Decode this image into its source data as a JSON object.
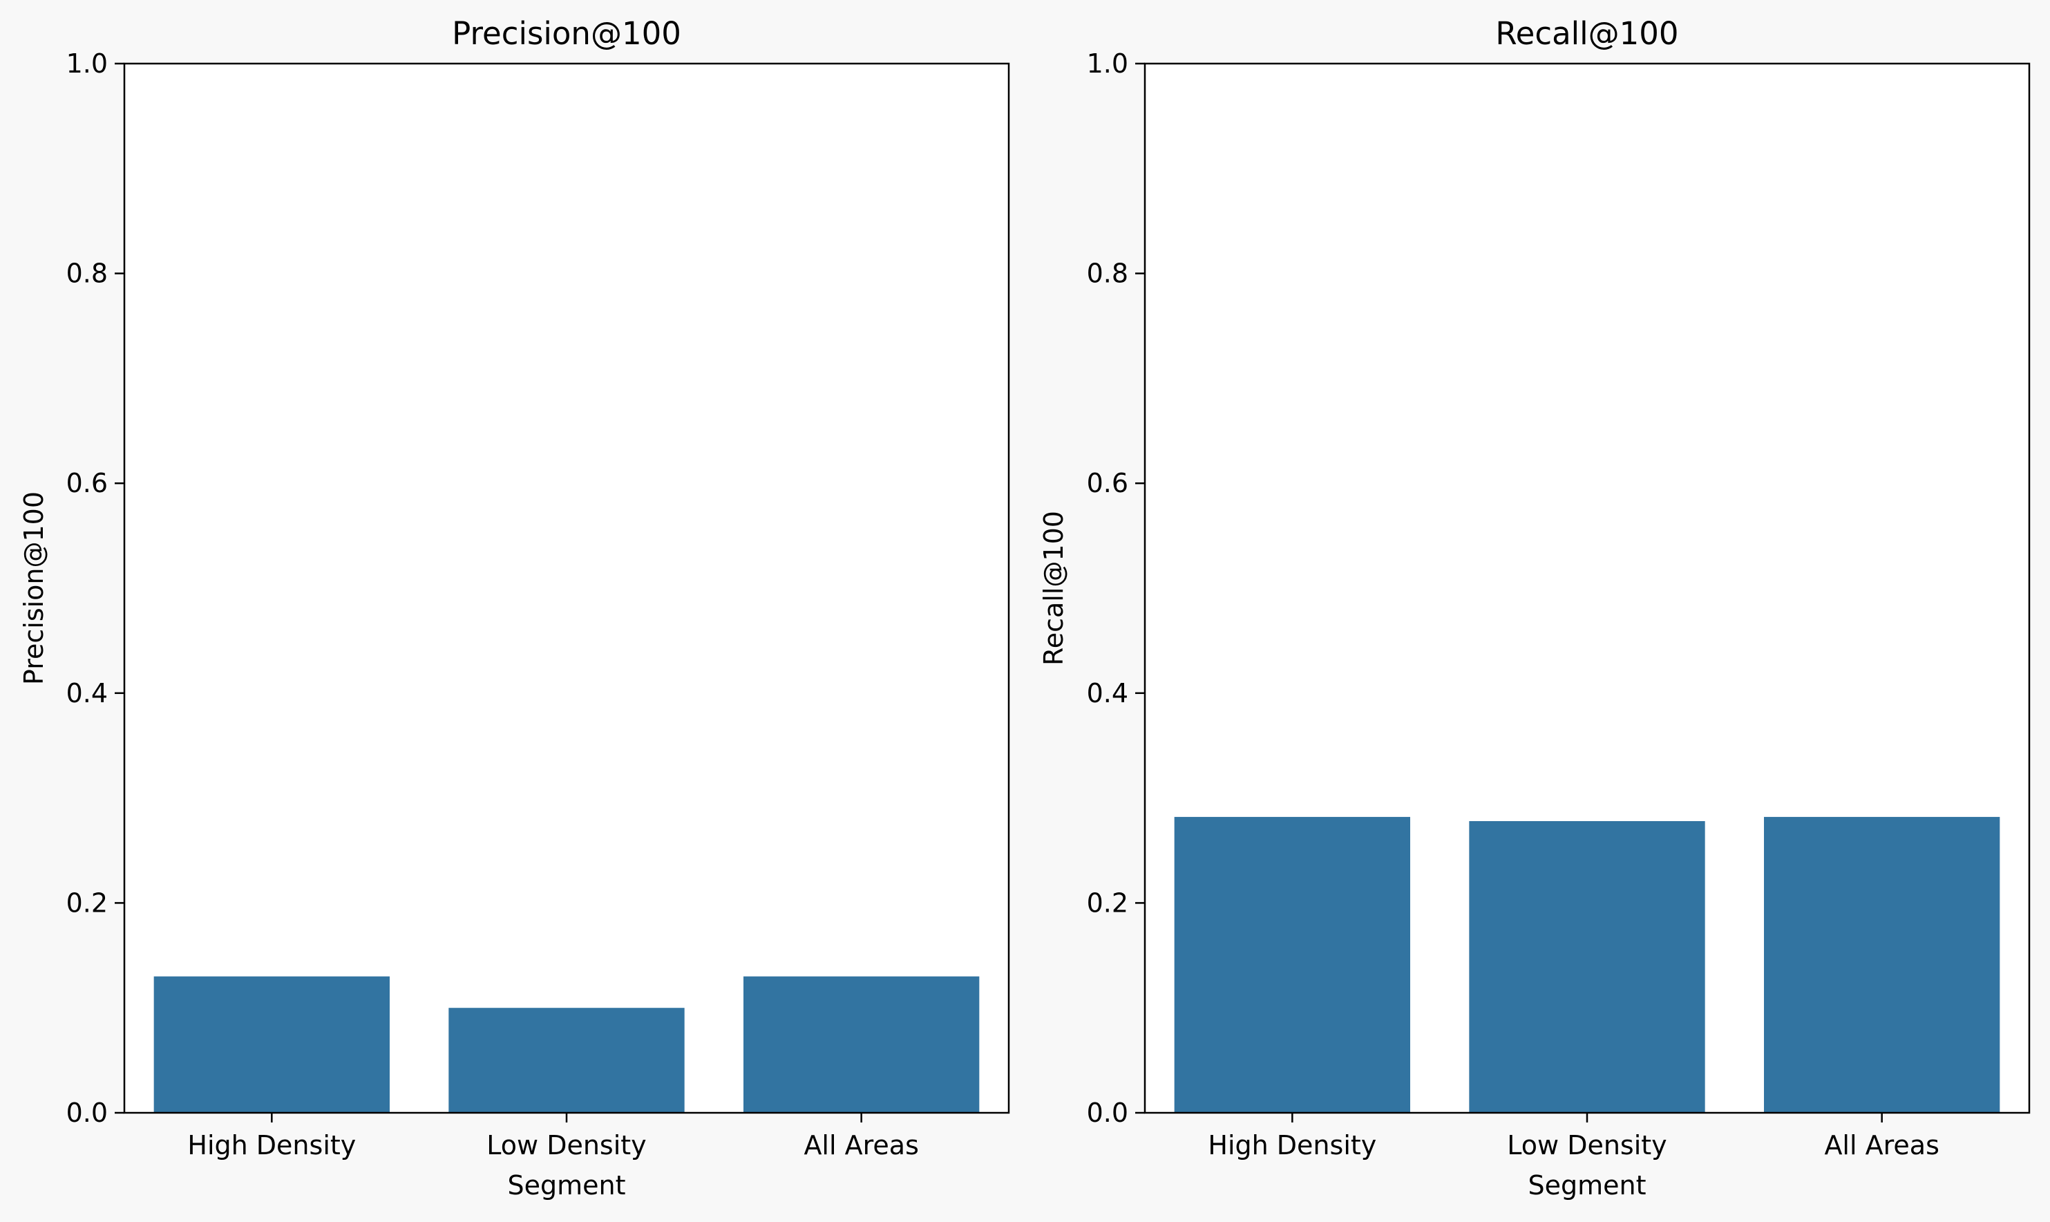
{
  "chart_data": [
    {
      "type": "bar",
      "title": "Precision@100",
      "xlabel": "Segment",
      "ylabel": "Precision@100",
      "categories": [
        "High Density",
        "Low Density",
        "All Areas"
      ],
      "values": [
        0.13,
        0.1,
        0.13
      ],
      "ylim": [
        0,
        1.0
      ],
      "yticks": [
        "0.0",
        "0.2",
        "0.4",
        "0.6",
        "0.8",
        "1.0"
      ],
      "grid": false,
      "bar_color": "#3274a1"
    },
    {
      "type": "bar",
      "title": "Recall@100",
      "xlabel": "Segment",
      "ylabel": "Recall@100",
      "categories": [
        "High Density",
        "Low Density",
        "All Areas"
      ],
      "values": [
        0.282,
        0.278,
        0.282
      ],
      "ylim": [
        0,
        1.0
      ],
      "yticks": [
        "0.0",
        "0.2",
        "0.4",
        "0.6",
        "0.8",
        "1.0"
      ],
      "grid": false,
      "bar_color": "#3274a1"
    }
  ],
  "colors": {
    "figure_background": "#f8f8f8",
    "axes_background": "#ffffff",
    "axis_line": "#000000",
    "text": "#000000"
  }
}
